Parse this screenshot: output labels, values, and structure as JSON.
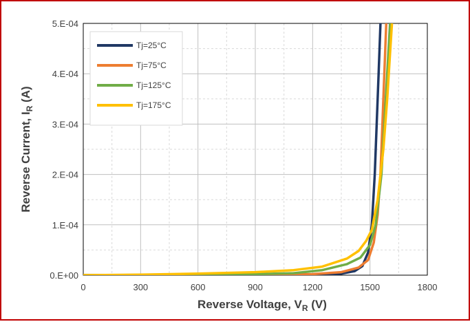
{
  "chart_data": {
    "type": "line",
    "xlabel_main": "Reverse Voltage, V",
    "xlabel_sub": "R",
    "xlabel_unit": " (V)",
    "ylabel_main": "Reverse Current, I",
    "ylabel_sub": "R",
    "ylabel_unit": " (A)",
    "xlim": [
      0,
      1800
    ],
    "ylim": [
      0,
      0.0005
    ],
    "x_ticks": [
      0,
      300,
      600,
      900,
      1200,
      1500,
      1800
    ],
    "x_tick_labels": [
      "0",
      "300",
      "600",
      "900",
      "1200",
      "1500",
      "1800"
    ],
    "y_ticks": [
      0,
      0.0001,
      0.0002,
      0.0003,
      0.0004,
      0.0005
    ],
    "y_tick_labels": [
      "0.E+00",
      "1.E-04",
      "2.E-04",
      "3.E-04",
      "4.E-04",
      "5.E-04"
    ],
    "grid": true,
    "legend_position": "top-left",
    "series": [
      {
        "name": "Tj=25°C",
        "color": "#203864",
        "points": [
          [
            0,
            0
          ],
          [
            600,
            0
          ],
          [
            1000,
            2e-07
          ],
          [
            1200,
            8e-07
          ],
          [
            1350,
            3e-06
          ],
          [
            1420,
            8e-06
          ],
          [
            1460,
            1.8e-05
          ],
          [
            1490,
            4.5e-05
          ],
          [
            1510,
            0.0001
          ],
          [
            1525,
            0.0002
          ],
          [
            1535,
            0.0003
          ],
          [
            1545,
            0.0004
          ],
          [
            1555,
            0.0005
          ]
        ]
      },
      {
        "name": "Tj=75°C",
        "color": "#ED7D31",
        "points": [
          [
            0,
            0
          ],
          [
            600,
            3e-07
          ],
          [
            1000,
            1e-06
          ],
          [
            1200,
            2e-06
          ],
          [
            1350,
            6e-06
          ],
          [
            1440,
            1.5e-05
          ],
          [
            1490,
            3e-05
          ],
          [
            1520,
            6.5e-05
          ],
          [
            1540,
            0.00012
          ],
          [
            1555,
            0.0002
          ],
          [
            1565,
            0.0003
          ],
          [
            1575,
            0.0004
          ],
          [
            1585,
            0.0005
          ]
        ]
      },
      {
        "name": "Tj=125°C",
        "color": "#70AD47",
        "points": [
          [
            0,
            0
          ],
          [
            600,
            1e-06
          ],
          [
            900,
            2e-06
          ],
          [
            1100,
            4e-06
          ],
          [
            1250,
            1e-05
          ],
          [
            1380,
            2.2e-05
          ],
          [
            1450,
            3.5e-05
          ],
          [
            1500,
            6e-05
          ],
          [
            1530,
            0.0001
          ],
          [
            1560,
            0.0002
          ],
          [
            1575,
            0.0003
          ],
          [
            1590,
            0.0004
          ],
          [
            1605,
            0.0005
          ]
        ]
      },
      {
        "name": "Tj=175°C",
        "color": "#FFC000",
        "points": [
          [
            0,
            0
          ],
          [
            300,
            1e-06
          ],
          [
            600,
            3e-06
          ],
          [
            900,
            6e-06
          ],
          [
            1100,
            1e-05
          ],
          [
            1250,
            1.7e-05
          ],
          [
            1380,
            3.3e-05
          ],
          [
            1440,
            4.8e-05
          ],
          [
            1480,
            6.8e-05
          ],
          [
            1510,
            9e-05
          ],
          [
            1540,
            0.00015
          ],
          [
            1570,
            0.00025
          ],
          [
            1590,
            0.00035
          ],
          [
            1605,
            0.00044
          ],
          [
            1615,
            0.0005
          ]
        ]
      }
    ]
  }
}
